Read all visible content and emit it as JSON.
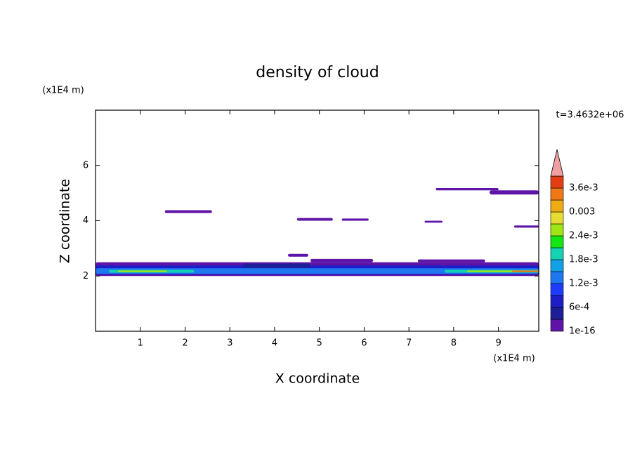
{
  "chart_data": {
    "type": "contour",
    "title": "density of cloud",
    "x_label": "X coordinate",
    "y_label": "Z coordinate",
    "x_unit": "(x1E4 m)",
    "y_unit": "(x1E4 m)",
    "time_label": "t=3.4632e+06",
    "xlim": [
      0,
      9.9
    ],
    "ylim": [
      0,
      8
    ],
    "xticks": [
      1,
      2,
      3,
      4,
      5,
      6,
      7,
      8,
      9
    ],
    "yticks": [
      2,
      4,
      6
    ],
    "colors": [
      "#5f14a8",
      "#1e1e96",
      "#1e1ec8",
      "#1e3cff",
      "#1e78f0",
      "#14a0e6",
      "#14d2b4",
      "#14e614",
      "#a0e614",
      "#e6dc32",
      "#f0aa14",
      "#f07814",
      "#e63c14"
    ],
    "over_color": "#f0a0a0",
    "colorbar_ticks": [
      {
        "value": 1e-16,
        "label": "1e-16"
      },
      {
        "value": 0.0006,
        "label": "6e-4"
      },
      {
        "value": 0.0012,
        "label": "1.2e-3"
      },
      {
        "value": 0.0018,
        "label": "1.8e-3"
      },
      {
        "value": 0.0024,
        "label": "2.4e-3"
      },
      {
        "value": 0.003,
        "label": "0.003"
      },
      {
        "value": 0.0036,
        "label": "3.6e-3"
      }
    ],
    "colorbar_lim": [
      1e-16,
      0.0039
    ],
    "patches": [
      {
        "x": [
          0,
          9.9
        ],
        "z": [
          2.0,
          2.5
        ],
        "level": 0
      },
      {
        "x": [
          0,
          9.9
        ],
        "z": [
          2.05,
          2.38
        ],
        "level": 2
      },
      {
        "x": [
          0,
          9.9
        ],
        "z": [
          2.08,
          2.28
        ],
        "level": 4
      },
      {
        "x": [
          0.3,
          2.2
        ],
        "z": [
          2.12,
          2.22
        ],
        "level": 6
      },
      {
        "x": [
          0.5,
          1.6
        ],
        "z": [
          2.14,
          2.2
        ],
        "level": 8
      },
      {
        "x": [
          7.8,
          9.9
        ],
        "z": [
          2.12,
          2.22
        ],
        "level": 6
      },
      {
        "x": [
          8.3,
          9.4
        ],
        "z": [
          2.14,
          2.2
        ],
        "level": 8
      },
      {
        "x": [
          9.3,
          9.9
        ],
        "z": [
          2.14,
          2.2
        ],
        "level": 11
      },
      {
        "x": [
          3.3,
          4.8
        ],
        "z": [
          2.3,
          2.45
        ],
        "level": 1
      },
      {
        "x": [
          4.3,
          4.75
        ],
        "z": [
          2.7,
          2.8
        ],
        "level": 0
      },
      {
        "x": [
          4.8,
          6.2
        ],
        "z": [
          2.5,
          2.62
        ],
        "level": 0
      },
      {
        "x": [
          7.2,
          8.7
        ],
        "z": [
          2.5,
          2.6
        ],
        "level": 0
      },
      {
        "x": [
          1.55,
          2.6
        ],
        "z": [
          4.28,
          4.38
        ],
        "level": 0
      },
      {
        "x": [
          4.5,
          5.3
        ],
        "z": [
          4.0,
          4.1
        ],
        "level": 0
      },
      {
        "x": [
          5.5,
          6.1
        ],
        "z": [
          4.0,
          4.08
        ],
        "level": 0
      },
      {
        "x": [
          7.35,
          7.75
        ],
        "z": [
          3.93,
          4.0
        ],
        "level": 0
      },
      {
        "x": [
          7.6,
          9.0
        ],
        "z": [
          5.1,
          5.18
        ],
        "level": 0
      },
      {
        "x": [
          8.8,
          9.9
        ],
        "z": [
          4.95,
          5.1
        ],
        "level": 0
      },
      {
        "x": [
          9.35,
          9.9
        ],
        "z": [
          3.75,
          3.83
        ],
        "level": 0
      }
    ]
  }
}
